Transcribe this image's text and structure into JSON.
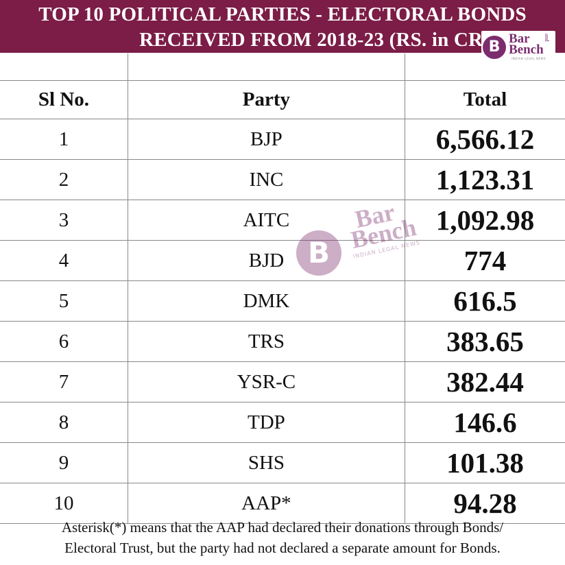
{
  "header": {
    "line1": "TOP 10 POLITICAL PARTIES - ELECTORAL BONDS",
    "line2": "RECEIVED FROM 2018-23 (RS. in CR)"
  },
  "logo": {
    "monogram": "B",
    "word1": "Bar",
    "word2": "Bench",
    "and": "and",
    "tagline": "INDIAN LEGAL NEWS"
  },
  "table": {
    "columns": [
      "Sl No.",
      "Party",
      "Total"
    ],
    "rows": [
      {
        "sl": "1",
        "party": "BJP",
        "total": "6,566.12"
      },
      {
        "sl": "2",
        "party": "INC",
        "total": "1,123.31"
      },
      {
        "sl": "3",
        "party": "AITC",
        "total": "1,092.98"
      },
      {
        "sl": "4",
        "party": "BJD",
        "total": "774"
      },
      {
        "sl": "5",
        "party": "DMK",
        "total": "616.5"
      },
      {
        "sl": "6",
        "party": "TRS",
        "total": "383.65"
      },
      {
        "sl": "7",
        "party": "YSR-C",
        "total": "382.44"
      },
      {
        "sl": "8",
        "party": "TDP",
        "total": "146.6"
      },
      {
        "sl": "9",
        "party": "SHS",
        "total": "101.38"
      },
      {
        "sl": "10",
        "party": "AAP*",
        "total": "94.28"
      }
    ]
  },
  "footnote": {
    "line1": "Asterisk(*) means that the AAP had declared their donations through Bonds/",
    "line2": "Electoral Trust, but the party had not declared a separate amount for Bonds."
  },
  "colors": {
    "header_bg": "#7b1d46",
    "brand": "#7b2d6e"
  }
}
